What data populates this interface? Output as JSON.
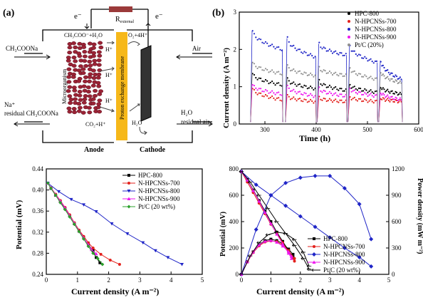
{
  "figure": {
    "panel_a": {
      "label": "(a)",
      "electron_left": "e⁻",
      "electron_right": "e⁻",
      "resistor": "R",
      "resistor_sub": "external",
      "inlet_left": "CH₃COONa",
      "outlet_left_1": "Na⁺",
      "outlet_left_2": "residual CH₃COONa",
      "anode_reaction": "CH₃COO⁻+H₂O",
      "anode_product": "CO₂+H⁺",
      "microorganism": "Microorganism",
      "membrane": "Proton exchange membrane",
      "cathode_reaction": "O₂+4H⁺",
      "cathode_product": "H₂O",
      "proton_1": "H⁺",
      "proton_2": "H⁺",
      "proton_3": "H⁺",
      "air_in": "Air",
      "outlet_right_1": "H₂O",
      "outlet_right_2": "residual air",
      "anode_label": "Anode",
      "cathode_label": "Cathode"
    },
    "colors": {
      "HPC-800": "#000000",
      "N-HPCNSs-700": "#e3211c",
      "N-HPCNSs-800": "#1f25c7",
      "N-HPCNSs-900": "#ee17ee",
      "Pt/C": "#2ca02c",
      "Pt/C (20%)": "#909090",
      "membrane": "#f6b81a",
      "cathode": "#333333",
      "cells": "#9b2335"
    }
  },
  "chart_data": [
    {
      "panel": "(b)",
      "type": "scatter",
      "xlabel": "Time (h)",
      "ylabel": "Current density (A m⁻²)",
      "xlim": [
        250,
        600
      ],
      "ylim": [
        0,
        3
      ],
      "xticks": [
        300,
        400,
        500,
        600
      ],
      "yticks": [
        0,
        1,
        2,
        3
      ],
      "legend": "top-right",
      "cycles": [
        [
          272,
          335
        ],
        [
          340,
          400
        ],
        [
          402,
          460
        ],
        [
          462,
          520
        ],
        [
          522,
          568
        ]
      ],
      "series": [
        {
          "name": "HPC-800",
          "start": [
            1.35,
            1.2,
            1.15,
            1.05,
            1.0
          ],
          "end": [
            1.05,
            0.95,
            0.9,
            0.85,
            0.8
          ]
        },
        {
          "name": "N-HPCNSs-700",
          "start": [
            0.95,
            0.75,
            0.7,
            0.72,
            0.7
          ],
          "end": [
            0.65,
            0.6,
            0.6,
            0.6,
            0.6
          ]
        },
        {
          "name": "N-HPCNSs-800",
          "start": [
            2.5,
            2.3,
            2.15,
            2.1,
            1.7
          ],
          "end": [
            2.0,
            1.8,
            1.85,
            1.65,
            1.2
          ]
        },
        {
          "name": "N-HPCNSs-900",
          "start": [
            1.05,
            1.0,
            0.95,
            0.95,
            0.85
          ],
          "end": [
            0.8,
            0.75,
            0.75,
            0.75,
            0.65
          ]
        },
        {
          "name": "Pt/C (20%)",
          "start": [
            1.65,
            1.55,
            1.5,
            1.5,
            1.4
          ],
          "end": [
            1.35,
            1.3,
            1.3,
            1.2,
            1.1
          ]
        }
      ]
    },
    {
      "panel": "polarization",
      "type": "line",
      "xlabel": "Current density (A m⁻²)",
      "ylabel": "Potential (mV)",
      "xlim": [
        0,
        5
      ],
      "ylim": [
        0.24,
        0.44
      ],
      "xticks": [
        0,
        1,
        2,
        3,
        4,
        5
      ],
      "yticks": [
        0.24,
        0.28,
        0.32,
        0.36,
        0.4,
        0.44
      ],
      "legend": "top-right",
      "series": [
        {
          "name": "HPC-800",
          "x": [
            0.05,
            0.15,
            0.3,
            0.45,
            0.6,
            0.75,
            0.9,
            1.05,
            1.2,
            1.35,
            1.5,
            1.6,
            1.72
          ],
          "y": [
            0.413,
            0.403,
            0.39,
            0.378,
            0.365,
            0.351,
            0.336,
            0.322,
            0.309,
            0.296,
            0.285,
            0.272,
            0.262
          ]
        },
        {
          "name": "N-HPCNSs-700",
          "x": [
            0.05,
            0.15,
            0.3,
            0.45,
            0.6,
            0.75,
            0.9,
            1.05,
            1.2,
            1.35,
            1.5,
            1.75,
            2.05,
            2.35
          ],
          "y": [
            0.413,
            0.404,
            0.392,
            0.38,
            0.367,
            0.353,
            0.338,
            0.324,
            0.312,
            0.3,
            0.29,
            0.278,
            0.267,
            0.259
          ]
        },
        {
          "name": "N-HPCNSs-800",
          "x": [
            0.05,
            0.4,
            0.8,
            1.2,
            1.6,
            2.1,
            2.6,
            3.1,
            3.5,
            3.9,
            4.35
          ],
          "y": [
            0.413,
            0.397,
            0.382,
            0.372,
            0.359,
            0.336,
            0.317,
            0.3,
            0.285,
            0.272,
            0.259
          ]
        },
        {
          "name": "N-HPCNSs-900",
          "x": [
            0.05,
            0.15,
            0.3,
            0.45,
            0.6,
            0.75,
            0.9,
            1.05,
            1.2,
            1.35,
            1.45,
            1.6
          ],
          "y": [
            0.413,
            0.404,
            0.391,
            0.379,
            0.366,
            0.351,
            0.337,
            0.322,
            0.309,
            0.296,
            0.287,
            0.279
          ]
        },
        {
          "name": "Pt/C (20 wt%)",
          "x": [
            0.05,
            0.15,
            0.3,
            0.45,
            0.6,
            0.75,
            0.9,
            1.05,
            1.2,
            1.35,
            1.5,
            1.65,
            1.8
          ],
          "y": [
            0.413,
            0.403,
            0.39,
            0.376,
            0.363,
            0.349,
            0.335,
            0.321,
            0.307,
            0.293,
            0.28,
            0.27,
            0.259
          ]
        }
      ]
    },
    {
      "panel": "power",
      "type": "line",
      "xlabel": "Current density (A m⁻²)",
      "ylabel": "Potential (mV)",
      "y2label": "Power density (mW m⁻²)",
      "xlim": [
        0,
        5
      ],
      "ylim": [
        0,
        800
      ],
      "y2lim": [
        0,
        1200
      ],
      "xticks": [
        0,
        1,
        2,
        3,
        4,
        5
      ],
      "yticks": [
        0,
        200,
        400,
        600,
        800
      ],
      "y2ticks": [
        0,
        300,
        600,
        900,
        1200
      ],
      "legend": "bottom-right",
      "series": [
        {
          "name": "HPC-800",
          "x": [
            0,
            0.2,
            0.4,
            0.6,
            0.8,
            1.0,
            1.2,
            1.4,
            1.6,
            1.75
          ],
          "potential": [
            780,
            720,
            640,
            560,
            480,
            400,
            320,
            250,
            180,
            130
          ],
          "power": [
            0,
            144,
            256,
            336,
            384,
            400,
            384,
            350,
            288,
            228
          ]
        },
        {
          "name": "N-HPCNSs-700",
          "x": [
            0,
            0.2,
            0.4,
            0.6,
            0.8,
            1.0,
            1.2,
            1.4,
            1.6,
            1.8
          ],
          "potential": [
            780,
            700,
            620,
            540,
            460,
            380,
            310,
            240,
            170,
            100
          ],
          "power": [
            0,
            140,
            248,
            324,
            368,
            380,
            372,
            336,
            272,
            180
          ]
        },
        {
          "name": "N-HPCNSs-800",
          "x": [
            0,
            0.5,
            1.0,
            1.5,
            2.0,
            2.5,
            3.0,
            3.5,
            4.0,
            4.4
          ],
          "potential": [
            780,
            680,
            600,
            520,
            440,
            360,
            280,
            200,
            130,
            60
          ],
          "power": [
            0,
            510,
            900,
            1040,
            1100,
            1120,
            1120,
            980,
            800,
            400
          ]
        },
        {
          "name": "N-HPCNSs-900",
          "x": [
            0,
            0.2,
            0.4,
            0.6,
            0.8,
            1.0,
            1.2,
            1.4,
            1.6,
            1.7
          ],
          "potential": [
            780,
            715,
            635,
            555,
            470,
            385,
            305,
            230,
            160,
            120
          ],
          "power": [
            0,
            143,
            254,
            333,
            376,
            385,
            366,
            322,
            256,
            204
          ]
        },
        {
          "name": "Pt/C (20 wt%)",
          "x": [
            0,
            0.3,
            0.6,
            0.9,
            1.2,
            1.5,
            1.8,
            2.1,
            2.3
          ],
          "potential": [
            780,
            700,
            600,
            500,
            400,
            310,
            220,
            120,
            40
          ],
          "power": [
            0,
            210,
            360,
            450,
            480,
            465,
            396,
            252,
            92
          ]
        }
      ]
    }
  ]
}
